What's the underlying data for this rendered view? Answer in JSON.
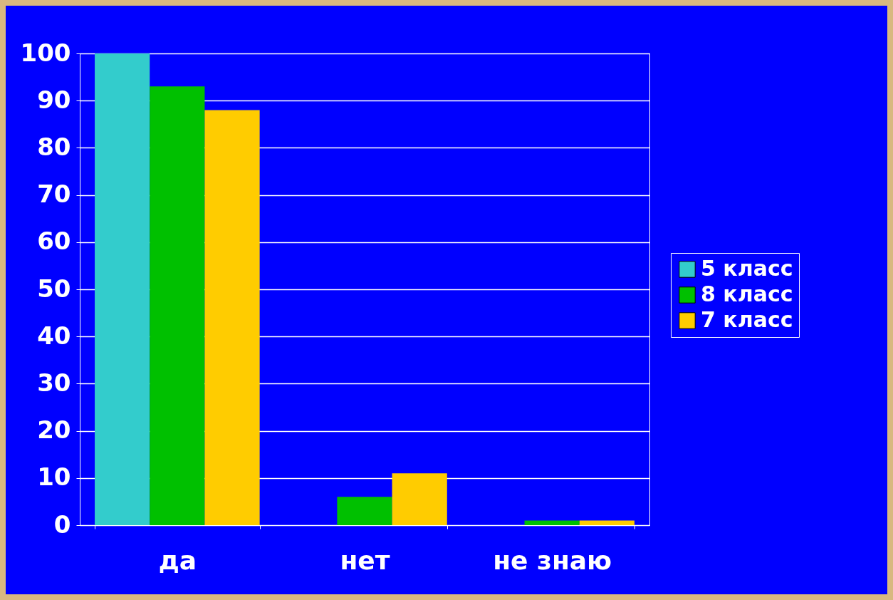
{
  "chart_data": {
    "type": "bar",
    "categories": [
      "да",
      "нет",
      "не знаю"
    ],
    "series": [
      {
        "name": "5 класс",
        "color": "#33cccc",
        "values": [
          100,
          0,
          0
        ]
      },
      {
        "name": "8 класс",
        "color": "#00c000",
        "values": [
          93,
          6,
          1
        ]
      },
      {
        "name": "7 класс",
        "color": "#ffcc00",
        "values": [
          88,
          11,
          1
        ]
      }
    ],
    "ylim": [
      0,
      100
    ],
    "yticks": [
      0,
      10,
      20,
      30,
      40,
      50,
      60,
      70,
      80,
      90,
      100
    ],
    "grid": "y",
    "legend": "right"
  }
}
